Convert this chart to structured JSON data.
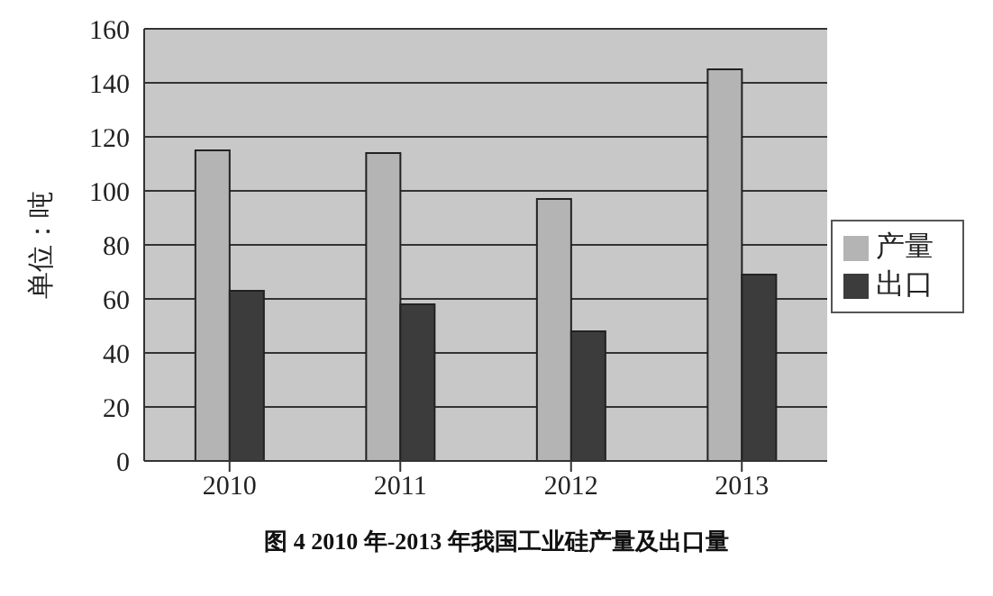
{
  "chart_data": {
    "type": "bar",
    "title": "图 4 2010 年-2013 年我国工业硅产量及出口量",
    "ylabel": "单位：吨",
    "categories": [
      "2010",
      "2011",
      "2012",
      "2013"
    ],
    "series": [
      {
        "name": "产量",
        "color": "#b4b4b4",
        "values": [
          115,
          114,
          97,
          145
        ]
      },
      {
        "name": "出口",
        "color": "#3c3c3c",
        "values": [
          63,
          58,
          48,
          69
        ]
      }
    ],
    "ylim": [
      0,
      160
    ],
    "yticks": [
      0,
      20,
      40,
      60,
      80,
      100,
      120,
      140,
      160
    ],
    "grid": "y",
    "legend": "right"
  }
}
